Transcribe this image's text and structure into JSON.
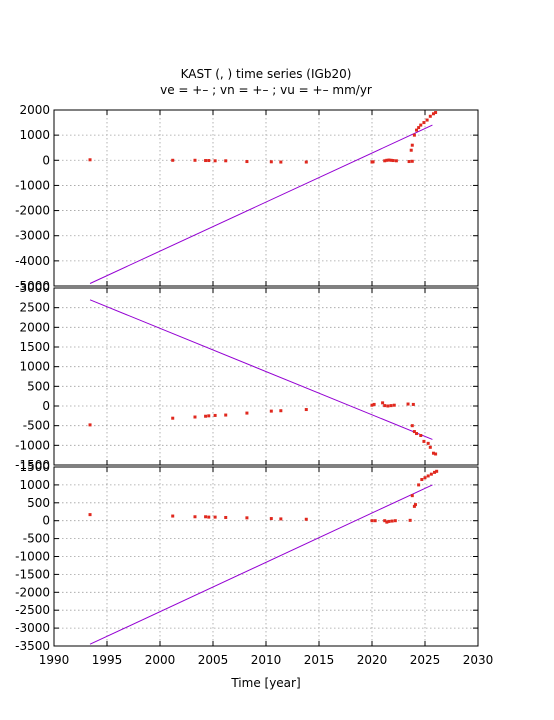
{
  "title_line1": "KAST (, ) time series (IGb20)",
  "title_line2": "ve =  +– ; vn =  +– ; vu =  +–  mm/yr",
  "colors": {
    "observations": "#e0281e",
    "trend": "#9400d3",
    "grid": "#a0a0a0"
  },
  "chart_data": [
    {
      "type": "scatter",
      "panel": "east",
      "xlabel": "",
      "ylabel": "",
      "xlim": [
        1990,
        2030
      ],
      "ylim": [
        -5000,
        2000
      ],
      "yticks": [
        2000,
        1000,
        0,
        -1000,
        -2000,
        -3000,
        -4000,
        -5000
      ],
      "xticks": [],
      "grid": true,
      "trend": {
        "x": [
          1993.4,
          2025.7
        ],
        "y": [
          -4900,
          1400
        ]
      },
      "points": [
        [
          1993.4,
          20
        ],
        [
          2001.2,
          0
        ],
        [
          2003.3,
          0
        ],
        [
          2004.3,
          -10
        ],
        [
          2004.6,
          -10
        ],
        [
          2005.2,
          -20
        ],
        [
          2006.2,
          -20
        ],
        [
          2008.2,
          -50
        ],
        [
          2010.5,
          -60
        ],
        [
          2011.4,
          -70
        ],
        [
          2013.8,
          -70
        ],
        [
          2020.0,
          -70
        ],
        [
          2020.1,
          -60
        ],
        [
          2021.2,
          -20
        ],
        [
          2021.4,
          0
        ],
        [
          2021.6,
          10
        ],
        [
          2021.8,
          0
        ],
        [
          2022.0,
          -10
        ],
        [
          2022.3,
          -20
        ],
        [
          2023.5,
          -50
        ],
        [
          2023.8,
          -40
        ],
        [
          2023.7,
          400
        ],
        [
          2023.8,
          600
        ],
        [
          2024.0,
          1000
        ],
        [
          2024.2,
          1200
        ],
        [
          2024.4,
          1300
        ],
        [
          2024.6,
          1400
        ],
        [
          2024.9,
          1500
        ],
        [
          2025.2,
          1600
        ],
        [
          2025.5,
          1750
        ],
        [
          2025.8,
          1850
        ],
        [
          2026.0,
          1900
        ]
      ]
    },
    {
      "type": "scatter",
      "panel": "north",
      "xlabel": "",
      "ylabel": "",
      "xlim": [
        1990,
        2030
      ],
      "ylim": [
        -1500,
        3000
      ],
      "yticks": [
        3000,
        2500,
        2000,
        1500,
        1000,
        500,
        0,
        -500,
        -1000,
        -1500
      ],
      "xticks": [],
      "grid": true,
      "trend": {
        "x": [
          1993.4,
          2025.7
        ],
        "y": [
          2700,
          -850
        ]
      },
      "points": [
        [
          1993.4,
          -480
        ],
        [
          2001.2,
          -310
        ],
        [
          2003.3,
          -280
        ],
        [
          2004.3,
          -260
        ],
        [
          2004.6,
          -250
        ],
        [
          2005.2,
          -240
        ],
        [
          2006.2,
          -230
        ],
        [
          2008.2,
          -180
        ],
        [
          2010.5,
          -130
        ],
        [
          2011.4,
          -120
        ],
        [
          2013.8,
          -90
        ],
        [
          2020.0,
          20
        ],
        [
          2020.2,
          40
        ],
        [
          2021.0,
          80
        ],
        [
          2021.2,
          10
        ],
        [
          2021.5,
          0
        ],
        [
          2021.8,
          10
        ],
        [
          2022.1,
          20
        ],
        [
          2023.4,
          50
        ],
        [
          2023.9,
          40
        ],
        [
          2023.8,
          -500
        ],
        [
          2024.0,
          -650
        ],
        [
          2024.2,
          -700
        ],
        [
          2024.6,
          -750
        ],
        [
          2024.9,
          -900
        ],
        [
          2025.3,
          -950
        ],
        [
          2025.5,
          -1050
        ],
        [
          2025.8,
          -1200
        ],
        [
          2026.0,
          -1220
        ]
      ]
    },
    {
      "type": "scatter",
      "panel": "up",
      "xlabel": "Time [year]",
      "ylabel": "",
      "xlim": [
        1990,
        2030
      ],
      "ylim": [
        -3500,
        1500
      ],
      "yticks": [
        1000,
        500,
        0,
        -500,
        -1000,
        -1500,
        -2000,
        -2500,
        -3000,
        -3500
      ],
      "ytick_labels_extra": [
        1500
      ],
      "xticks": [
        1990,
        1995,
        2000,
        2005,
        2010,
        2015,
        2020,
        2025,
        2030
      ],
      "grid": true,
      "trend": {
        "x": [
          1993.4,
          2025.7
        ],
        "y": [
          -3450,
          1000
        ]
      },
      "points": [
        [
          1993.4,
          170
        ],
        [
          2001.2,
          130
        ],
        [
          2003.3,
          110
        ],
        [
          2004.3,
          110
        ],
        [
          2004.6,
          100
        ],
        [
          2005.2,
          100
        ],
        [
          2006.2,
          90
        ],
        [
          2008.2,
          80
        ],
        [
          2010.5,
          60
        ],
        [
          2011.4,
          50
        ],
        [
          2013.8,
          40
        ],
        [
          2020.0,
          0
        ],
        [
          2020.3,
          0
        ],
        [
          2021.2,
          0
        ],
        [
          2021.4,
          -40
        ],
        [
          2021.6,
          -20
        ],
        [
          2021.9,
          -10
        ],
        [
          2022.2,
          0
        ],
        [
          2023.6,
          10
        ],
        [
          2023.8,
          700
        ],
        [
          2024.0,
          400
        ],
        [
          2024.1,
          450
        ],
        [
          2024.4,
          1000
        ],
        [
          2024.7,
          1150
        ],
        [
          2025.0,
          1200
        ],
        [
          2025.3,
          1250
        ],
        [
          2025.6,
          1300
        ],
        [
          2025.9,
          1350
        ],
        [
          2026.1,
          1380
        ]
      ]
    }
  ]
}
